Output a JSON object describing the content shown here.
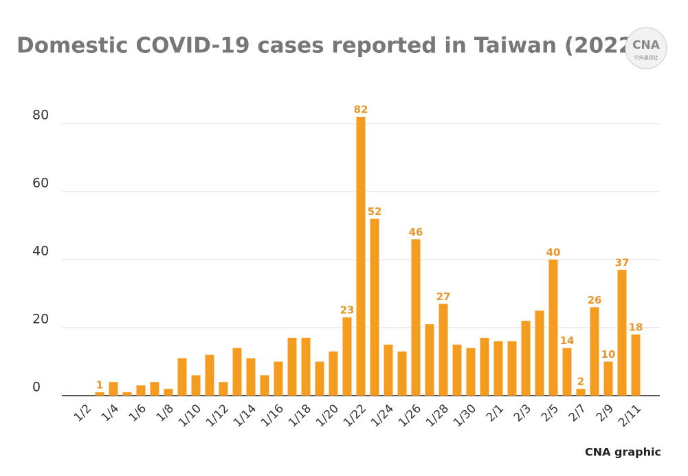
{
  "chart_data": {
    "type": "bar",
    "title": "Domestic COVID-19 cases reported in Taiwan (2022)",
    "source": "CNA graphic",
    "logo": {
      "text": "CNA",
      "subtext": "中央通訊社"
    },
    "categories": [
      "1/2",
      null,
      "1/4",
      null,
      "1/6",
      null,
      "1/8",
      null,
      "1/10",
      null,
      "1/12",
      null,
      "1/14",
      null,
      "1/16",
      null,
      "1/18",
      null,
      "1/20",
      null,
      "1/22",
      null,
      "1/24",
      null,
      "1/26",
      null,
      "1/28",
      null,
      "1/30",
      null,
      "2/1",
      null,
      "2/3",
      null,
      "2/5",
      null,
      "2/7",
      null,
      "2/9",
      null,
      "2/11"
    ],
    "values": [
      0,
      1,
      4,
      1,
      3,
      4,
      2,
      11,
      6,
      12,
      4,
      14,
      11,
      6,
      10,
      17,
      17,
      10,
      13,
      23,
      82,
      52,
      15,
      13,
      46,
      21,
      27,
      15,
      14,
      17,
      16,
      16,
      22,
      25,
      40,
      14,
      2,
      26,
      10,
      37,
      18
    ],
    "value_labels": [
      null,
      "1",
      null,
      null,
      null,
      null,
      null,
      null,
      null,
      null,
      null,
      null,
      null,
      null,
      null,
      null,
      null,
      null,
      null,
      "23",
      "82",
      "52",
      null,
      null,
      "46",
      null,
      "27",
      null,
      null,
      null,
      null,
      null,
      null,
      null,
      "40",
      "14",
      "2",
      "26",
      "10",
      "37",
      "18"
    ],
    "color": "#f39c1f",
    "ylim": [
      0,
      80
    ],
    "yticks": [
      0,
      20,
      40,
      60,
      80
    ],
    "grid": true
  }
}
